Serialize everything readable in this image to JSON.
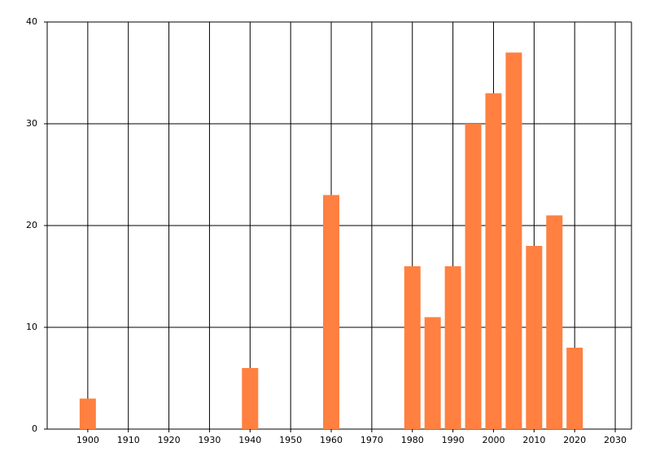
{
  "chart_data": {
    "type": "bar",
    "x": [
      1900,
      1940,
      1960,
      1980,
      1985,
      1990,
      1995,
      2000,
      2005,
      2010,
      2015,
      2020
    ],
    "values": [
      3,
      6,
      23,
      16,
      11,
      16,
      30,
      33,
      37,
      18,
      21,
      8
    ],
    "color": "#ff8040",
    "xlim": [
      1890,
      2034
    ],
    "xticks": [
      1900,
      1910,
      1920,
      1930,
      1940,
      1950,
      1960,
      1970,
      1980,
      1990,
      2000,
      2010,
      2020,
      2030
    ],
    "ylim": [
      0,
      40
    ],
    "yticks": [
      0,
      10,
      20,
      30,
      40
    ],
    "grid": true
  }
}
